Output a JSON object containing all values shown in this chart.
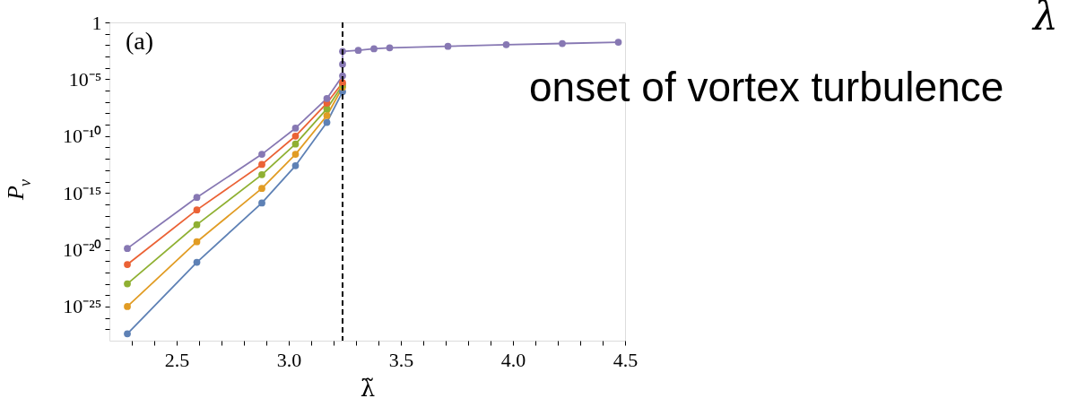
{
  "chart_data": {
    "type": "line",
    "xlabel": "λ̃",
    "ylabel": "P$_{ν}$",
    "annotations": [
      "(a)",
      "onset of vortex turbulence",
      "λ"
    ],
    "log": "y",
    "grid": false,
    "legend": false,
    "marker": "circle",
    "line_style": "solid",
    "xlim": [
      2.2,
      4.5
    ],
    "xticks": [
      {
        "value": 2.3,
        "label": null
      },
      {
        "value": 2.4,
        "label": null
      },
      2.5,
      {
        "value": 2.6,
        "label": null
      },
      {
        "value": 2.7,
        "label": null
      },
      {
        "value": 2.8,
        "label": null
      },
      {
        "value": 2.9,
        "label": null
      },
      {
        "value": 3.0,
        "label": "3.0"
      },
      {
        "value": 3.1,
        "label": null
      },
      {
        "value": 3.2,
        "label": null
      },
      {
        "value": 3.3,
        "label": null
      },
      {
        "value": 3.4,
        "label": null
      },
      3.5,
      {
        "value": 3.6,
        "label": null
      },
      {
        "value": 3.7,
        "label": null
      },
      {
        "value": 3.8,
        "label": null
      },
      {
        "value": 3.9,
        "label": null
      },
      {
        "value": 4.0,
        "label": "4.0"
      },
      {
        "value": 4.1,
        "label": null
      },
      {
        "value": 4.2,
        "label": null
      },
      {
        "value": 4.3,
        "label": null
      },
      {
        "value": 4.4,
        "label": null
      },
      4.5
    ],
    "ylim": [
      1e-28,
      1
    ],
    "yticks": [
      1,
      {
        "value": 1e-05,
        "label": "10⁻⁵"
      },
      {
        "value": 1e-10,
        "label": "10⁻¹⁰"
      },
      {
        "value": 1e-15,
        "label": "10⁻¹⁵"
      },
      {
        "value": 1e-20,
        "label": "10⁻²⁰"
      },
      {
        "value": 1e-25,
        "label": "10⁻²⁵"
      },
      {
        "value": 0.1,
        "label": null
      },
      {
        "value": 0.01,
        "label": null
      },
      {
        "value": 0.001,
        "label": null
      },
      {
        "value": 0.0001,
        "label": null
      },
      {
        "value": 1e-06,
        "label": null
      },
      {
        "value": 1e-07,
        "label": null
      },
      {
        "value": 1e-08,
        "label": null
      },
      {
        "value": 1e-09,
        "label": null
      },
      {
        "value": 1e-11,
        "label": null
      },
      {
        "value": 1e-12,
        "label": null
      },
      {
        "value": 1e-13,
        "label": null
      },
      {
        "value": 1e-14,
        "label": null
      },
      {
        "value": 1e-16,
        "label": null
      },
      {
        "value": 1e-17,
        "label": null
      },
      {
        "value": 1e-18,
        "label": null
      },
      {
        "value": 1e-19,
        "label": null
      },
      {
        "value": 1e-21,
        "label": null
      },
      {
        "value": 1e-22,
        "label": null
      },
      {
        "value": 1e-23,
        "label": null
      },
      {
        "value": 1e-24,
        "label": null
      },
      {
        "value": 1e-26,
        "label": null
      },
      {
        "value": 1e-27,
        "label": null
      }
    ],
    "ref_lines": [
      {
        "axis": "x",
        "value": 3.24,
        "color": "#000000",
        "line_style": "dashed"
      }
    ],
    "series": [
      {
        "color": "#5e81b5",
        "x": [
          2.28,
          2.59,
          2.88,
          3.03,
          3.17,
          3.24
        ],
        "values": [
          4e-28,
          7.9e-22,
          1.3e-16,
          2.5e-13,
          1.6e-09,
          7.9e-07
        ]
      },
      {
        "color": "#e19c24",
        "x": [
          2.28,
          2.59,
          2.88,
          3.03,
          3.17,
          3.24
        ],
        "values": [
          1e-25,
          5e-20,
          2.5e-15,
          2.5e-12,
          6.3e-09,
          2e-06
        ]
      },
      {
        "color": "#8fb032",
        "x": [
          2.28,
          2.59,
          2.88,
          3.03,
          3.17,
          3.24
        ],
        "values": [
          1e-23,
          1.6e-18,
          4e-14,
          2e-11,
          2.5e-08,
          3.2e-06
        ]
      },
      {
        "color": "#eb6235",
        "x": [
          2.28,
          2.59,
          2.88,
          3.03,
          3.17,
          3.24
        ],
        "values": [
          5e-22,
          3.2e-17,
          3.2e-13,
          1e-10,
          7.9e-08,
          5e-06
        ]
      },
      {
        "color": "#8778b3",
        "x": [
          2.28,
          2.59,
          2.88,
          3.03,
          3.17,
          3.24,
          3.24,
          3.24,
          3.31,
          3.38,
          3.45,
          3.71,
          3.97,
          4.22,
          4.47
        ],
        "values": [
          1.3e-20,
          4e-16,
          2.5e-12,
          5e-10,
          2e-07,
          2e-05,
          0.00021,
          0.0028,
          0.0035,
          0.0048,
          0.0058,
          0.0079,
          0.011,
          0.014,
          0.018
        ]
      }
    ]
  }
}
